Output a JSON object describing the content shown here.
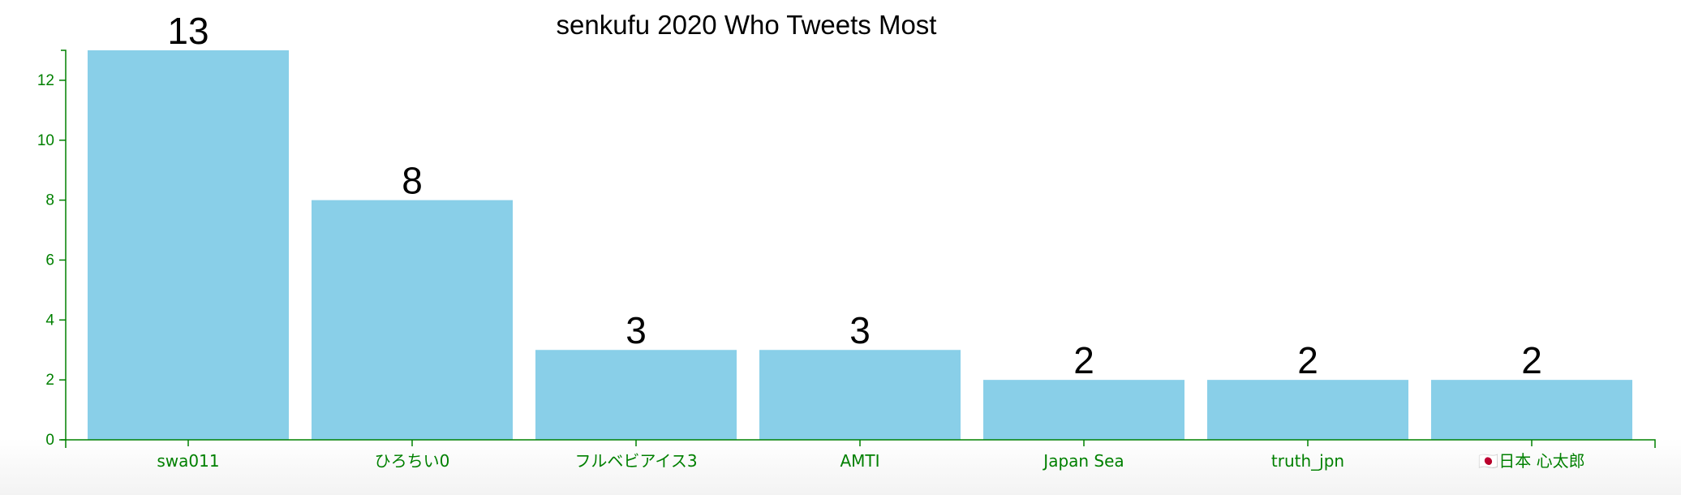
{
  "chart_data": {
    "type": "bar",
    "title": "senkufu 2020 Who Tweets Most",
    "categories": [
      "swa011",
      "ひろちい0",
      "フルベビアイス3",
      "AMTI",
      "Japan Sea",
      "truth_jpn",
      "🇯🇵日本 心太郎"
    ],
    "values": [
      13,
      8,
      3,
      3,
      2,
      2,
      2
    ],
    "xlabel": "",
    "ylabel": "",
    "ylim": [
      0,
      13
    ],
    "yticks": [
      0,
      2,
      4,
      6,
      8,
      10,
      12
    ],
    "grid": false,
    "data_labels": true
  },
  "colors": {
    "bar": "#89CFE8",
    "axis": "#008000",
    "text": "#000000"
  }
}
